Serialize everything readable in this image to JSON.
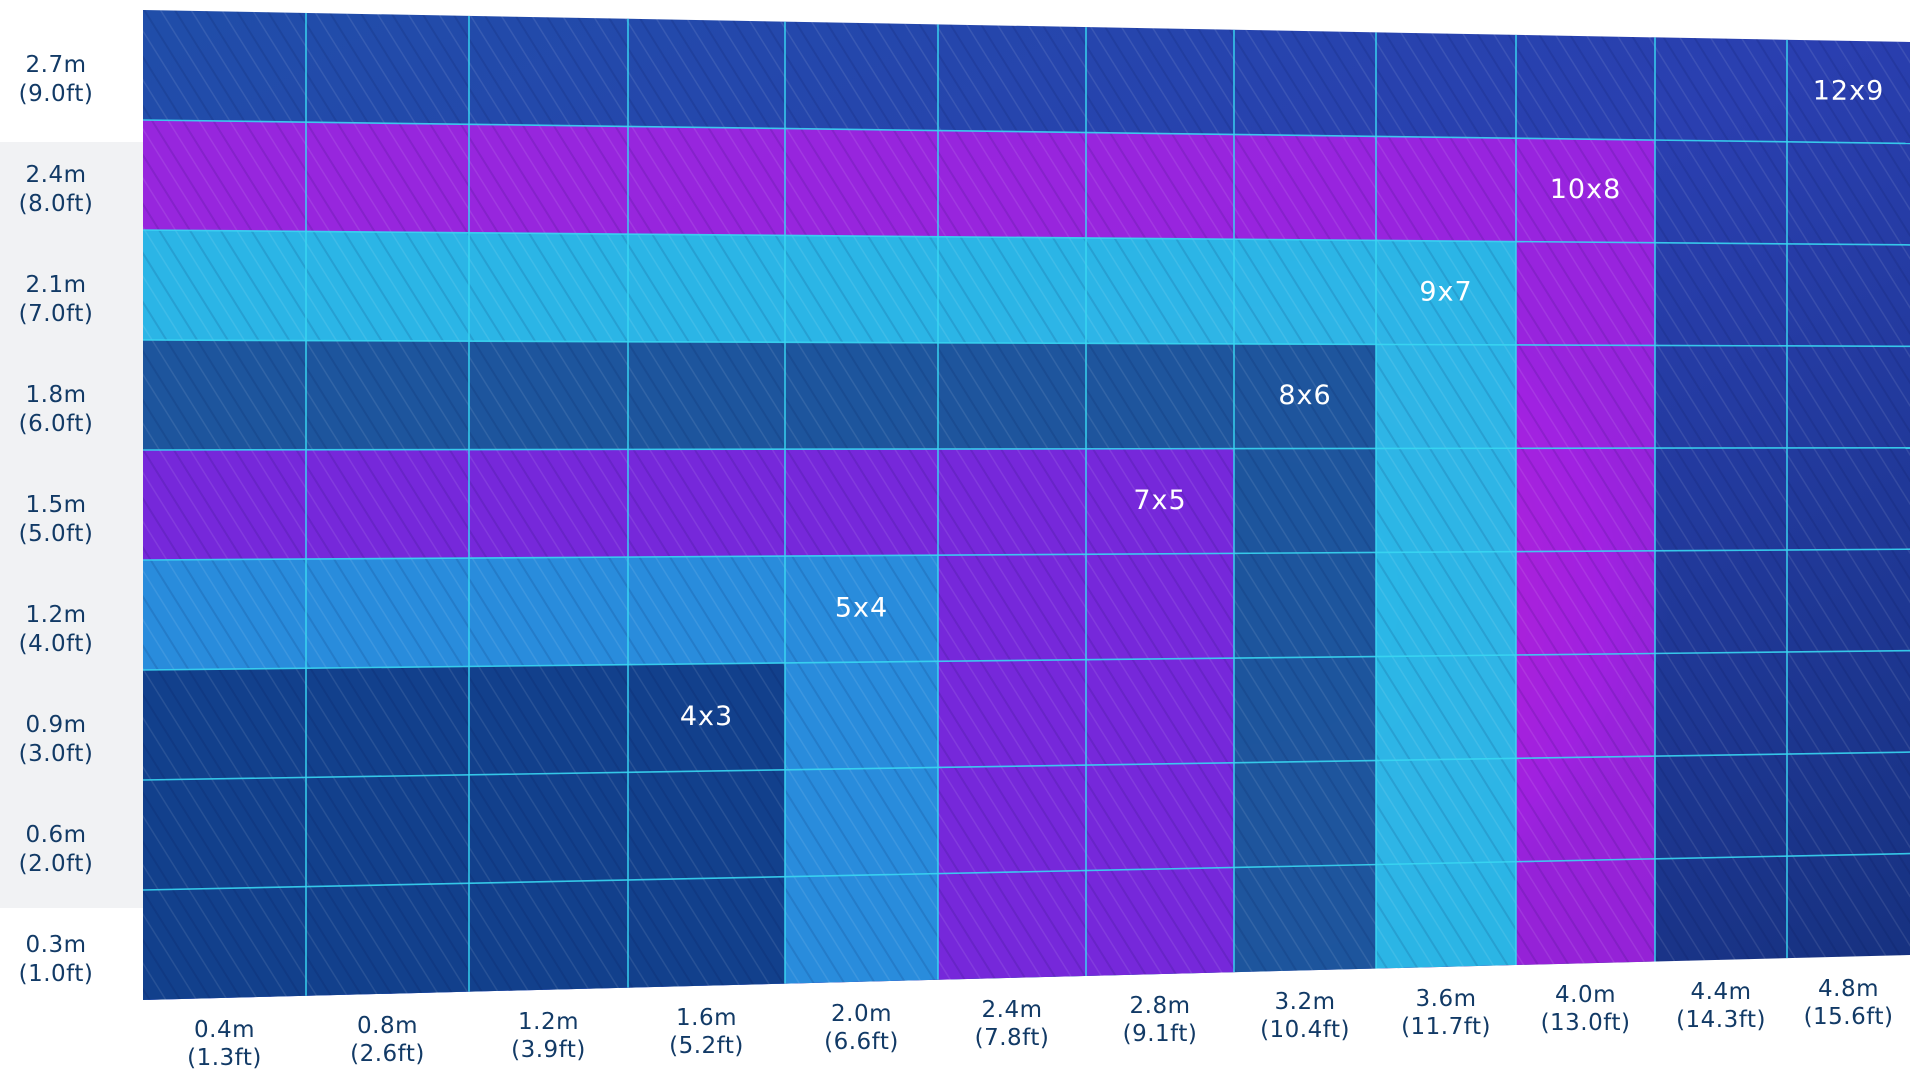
{
  "chart_data": {
    "type": "diagram",
    "y_axis": [
      {
        "m": "2.7m",
        "ft": "(9.0ft)"
      },
      {
        "m": "2.4m",
        "ft": "(8.0ft)"
      },
      {
        "m": "2.1m",
        "ft": "(7.0ft)"
      },
      {
        "m": "1.8m",
        "ft": "(6.0ft)"
      },
      {
        "m": "1.5m",
        "ft": "(5.0ft)"
      },
      {
        "m": "1.2m",
        "ft": "(4.0ft)"
      },
      {
        "m": "0.9m",
        "ft": "(3.0ft)"
      },
      {
        "m": "0.6m",
        "ft": "(2.0ft)"
      },
      {
        "m": "0.3m",
        "ft": "(1.0ft)"
      }
    ],
    "x_axis": [
      {
        "m": "0.4m",
        "ft": "(1.3ft)"
      },
      {
        "m": "0.8m",
        "ft": "(2.6ft)"
      },
      {
        "m": "1.2m",
        "ft": "(3.9ft)"
      },
      {
        "m": "1.6m",
        "ft": "(5.2ft)"
      },
      {
        "m": "2.0m",
        "ft": "(6.6ft)"
      },
      {
        "m": "2.4m",
        "ft": "(7.8ft)"
      },
      {
        "m": "2.8m",
        "ft": "(9.1ft)"
      },
      {
        "m": "3.2m",
        "ft": "(10.4ft)"
      },
      {
        "m": "3.6m",
        "ft": "(11.7ft)"
      },
      {
        "m": "4.0m",
        "ft": "(13.0ft)"
      },
      {
        "m": "4.4m",
        "ft": "(14.3ft)"
      },
      {
        "m": "4.8m",
        "ft": "(15.6ft)"
      }
    ],
    "configurations": [
      {
        "label": "4x3",
        "cols": 4,
        "rows": 3,
        "color": "#0e2f7a"
      },
      {
        "label": "5x4",
        "cols": 5,
        "rows": 4,
        "color": "#18a2dc"
      },
      {
        "label": "7x5",
        "cols": 7,
        "rows": 5,
        "color": "#8a1ee8"
      },
      {
        "label": "8x6",
        "cols": 8,
        "rows": 6,
        "color": "#1b3f8c"
      },
      {
        "label": "9x7",
        "cols": 9,
        "rows": 7,
        "color": "#14d6e8"
      },
      {
        "label": "10x8",
        "cols": 10,
        "rows": 8,
        "color": "#b11ee8"
      },
      {
        "label": "12x9",
        "cols": 12,
        "rows": 9,
        "color": "#2a47b8"
      }
    ],
    "grid_color": "#39d6f2"
  }
}
